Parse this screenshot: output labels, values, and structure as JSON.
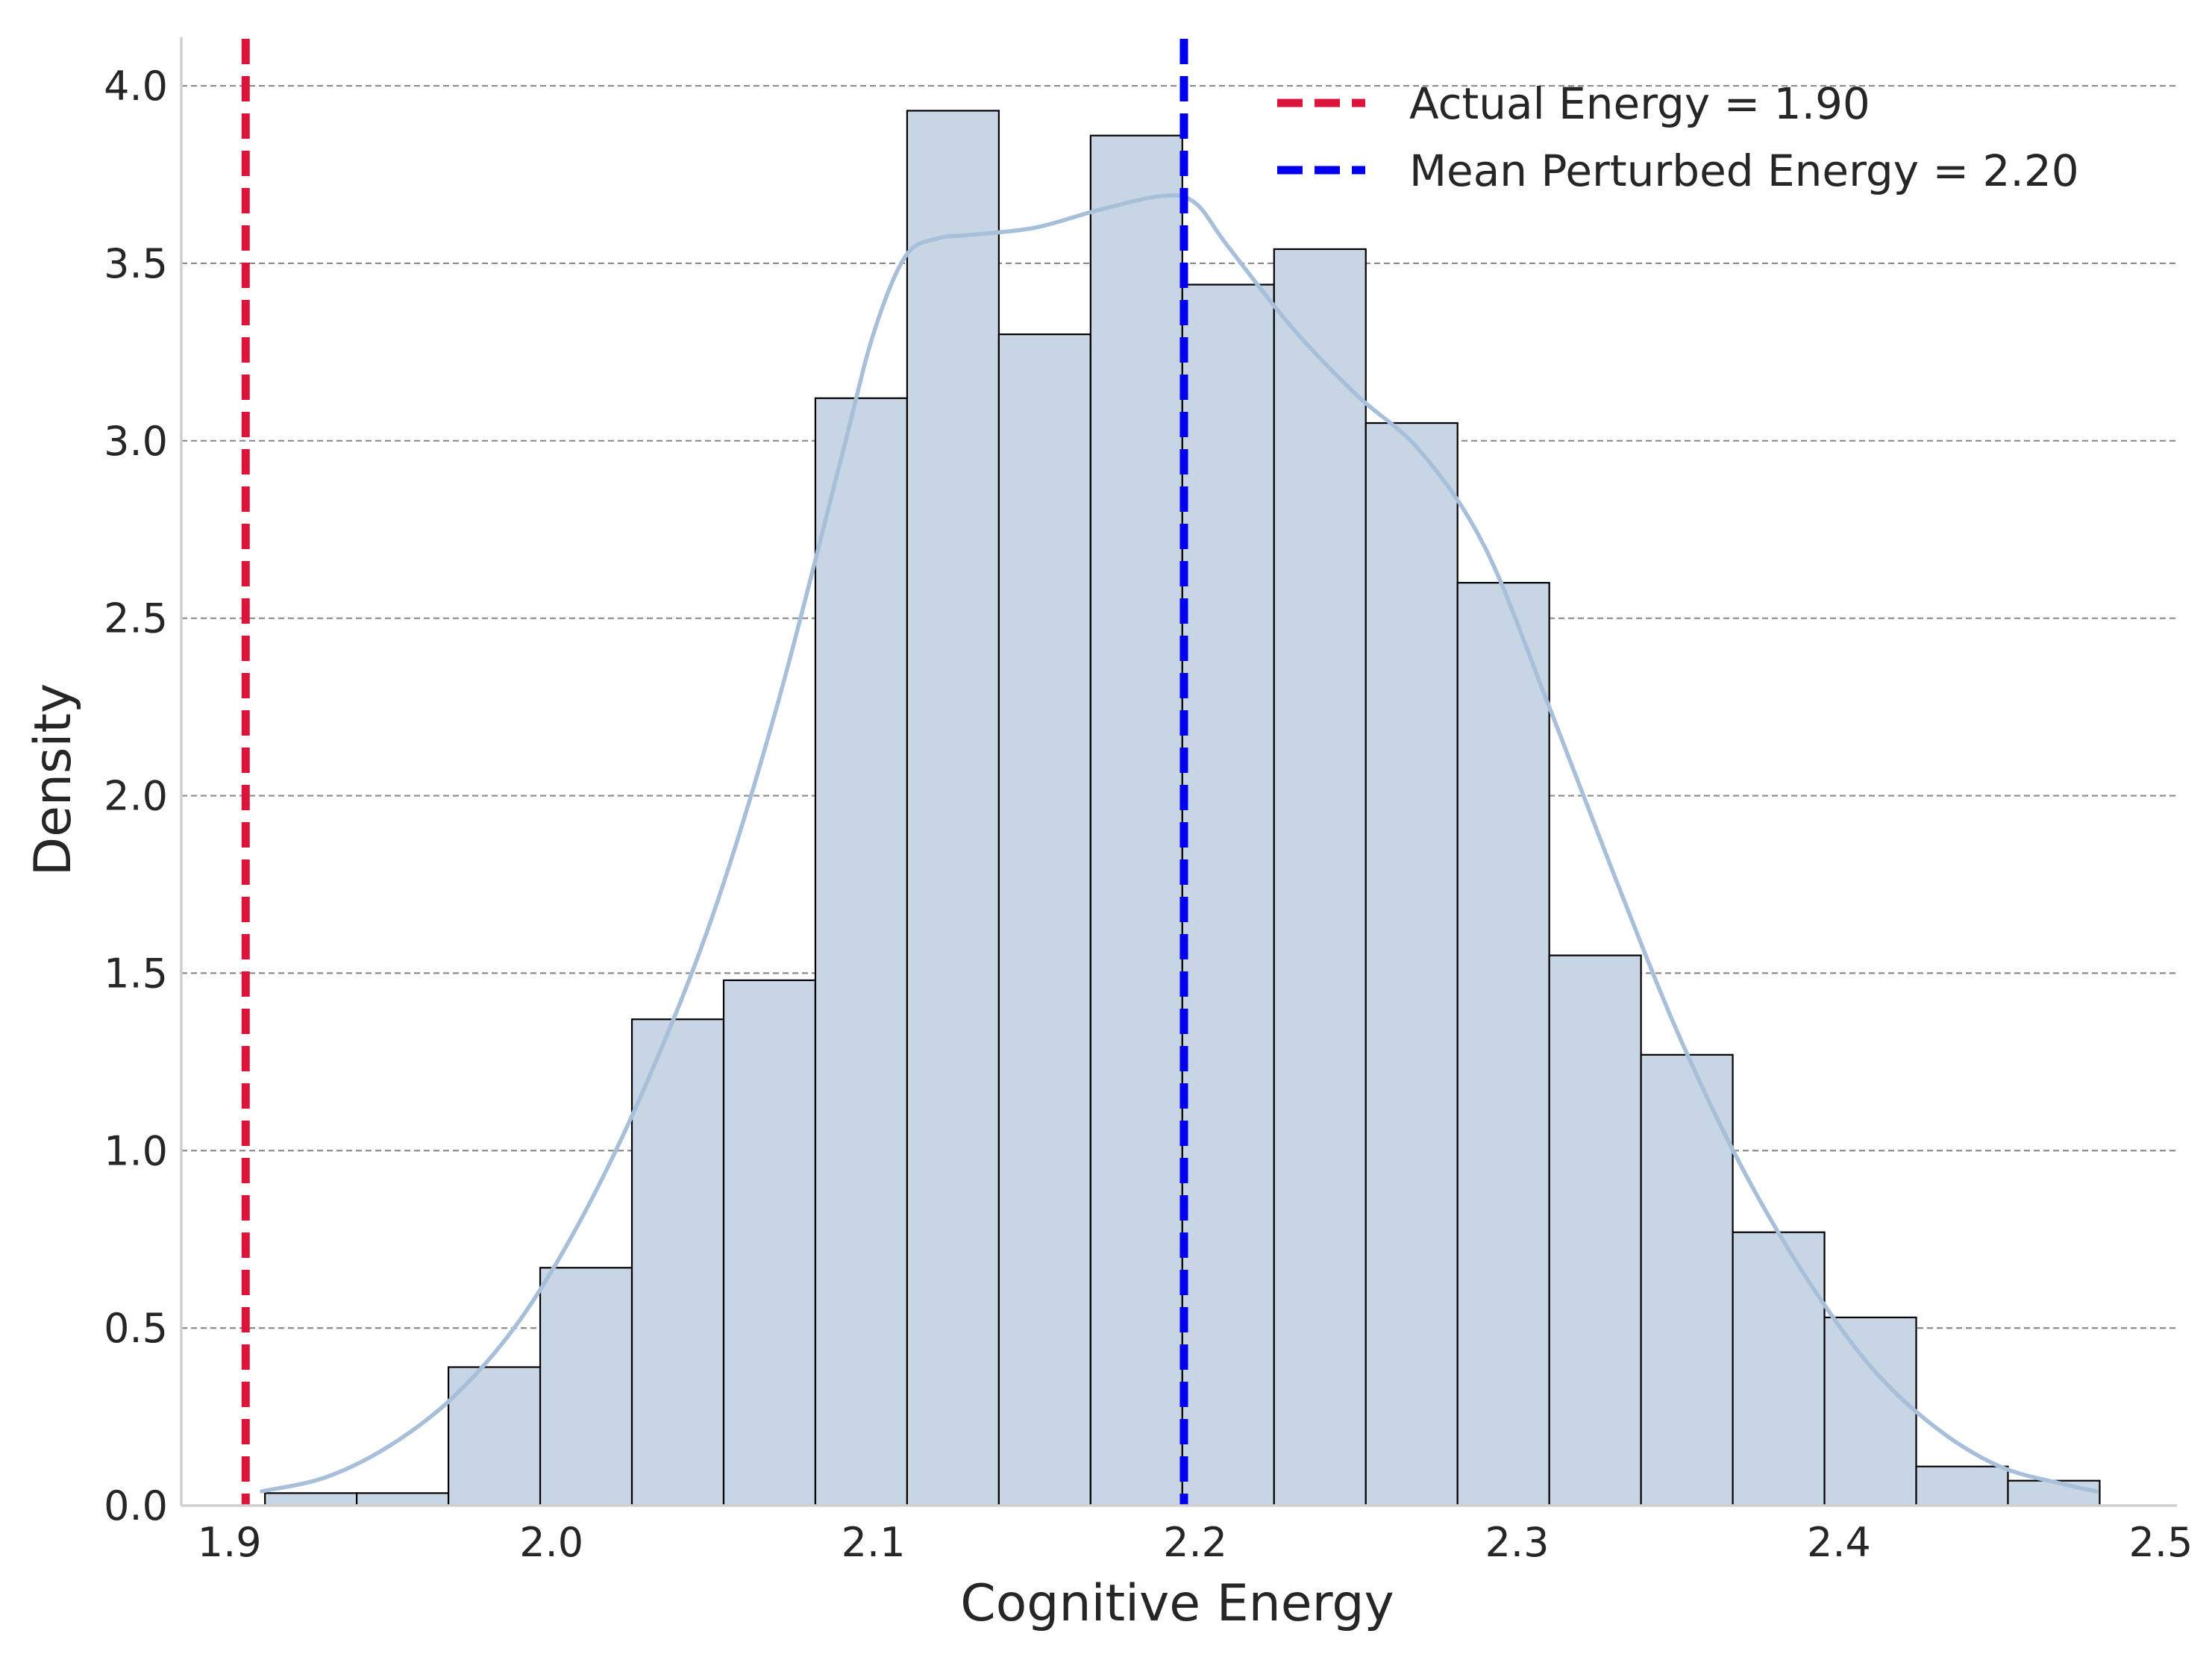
{
  "chart_data": {
    "type": "bar",
    "xlabel": "Cognitive Energy",
    "ylabel": "Density",
    "xlim": [
      1.885,
      2.505
    ],
    "ylim": [
      0,
      4.12
    ],
    "x_ticks": [
      1.9,
      2.0,
      2.1,
      2.2,
      2.3,
      2.4,
      2.5
    ],
    "x_tick_labels": [
      "1.9",
      "2.0",
      "2.1",
      "2.2",
      "2.3",
      "2.4",
      "2.5"
    ],
    "y_ticks": [
      0.0,
      0.5,
      1.0,
      1.5,
      2.0,
      2.5,
      3.0,
      3.5,
      4.0
    ],
    "y_tick_labels": [
      "0.0",
      "0.5",
      "1.0",
      "1.5",
      "2.0",
      "2.5",
      "3.0",
      "3.5",
      "4.0"
    ],
    "grid": "horizontal dashed",
    "legend_position": "top-right",
    "histogram": {
      "bin_edges": [
        1.911,
        1.9395,
        1.968,
        1.9965,
        2.025,
        2.0535,
        2.082,
        2.1105,
        2.139,
        2.1675,
        2.196,
        2.2245,
        2.253,
        2.2815,
        2.31,
        2.3385,
        2.367,
        2.3955,
        2.424,
        2.4525,
        2.481
      ],
      "values": [
        0.035,
        0.035,
        0.39,
        0.67,
        1.37,
        1.48,
        3.12,
        3.93,
        3.3,
        3.86,
        3.44,
        3.54,
        3.05,
        2.6,
        1.55,
        1.27,
        0.77,
        0.53,
        0.11,
        0.07
      ],
      "fill_color": "#c7d5e5",
      "edge_color": "#000000"
    },
    "kde": {
      "x": [
        1.91,
        1.93,
        1.95,
        1.97,
        1.99,
        2.01,
        2.03,
        2.05,
        2.07,
        2.09,
        2.1,
        2.11,
        2.12,
        2.13,
        2.15,
        2.17,
        2.19,
        2.2,
        2.21,
        2.23,
        2.25,
        2.27,
        2.29,
        2.31,
        2.33,
        2.35,
        2.37,
        2.39,
        2.41,
        2.43,
        2.45,
        2.47,
        2.48
      ],
      "y": [
        0.04,
        0.08,
        0.17,
        0.31,
        0.52,
        0.82,
        1.2,
        1.66,
        2.25,
        2.95,
        3.3,
        3.52,
        3.57,
        3.58,
        3.6,
        3.65,
        3.69,
        3.67,
        3.55,
        3.32,
        3.13,
        2.97,
        2.7,
        2.25,
        1.78,
        1.33,
        0.95,
        0.64,
        0.39,
        0.22,
        0.11,
        0.06,
        0.04
      ],
      "color": "#a8bfd9"
    },
    "reference_lines": [
      {
        "name": "Actual Energy = 1.90",
        "x": 1.905,
        "color": "#dc143c"
      },
      {
        "name": "Mean Perturbed Energy = 2.20",
        "x": 2.1965,
        "color": "#0000ee"
      }
    ]
  }
}
